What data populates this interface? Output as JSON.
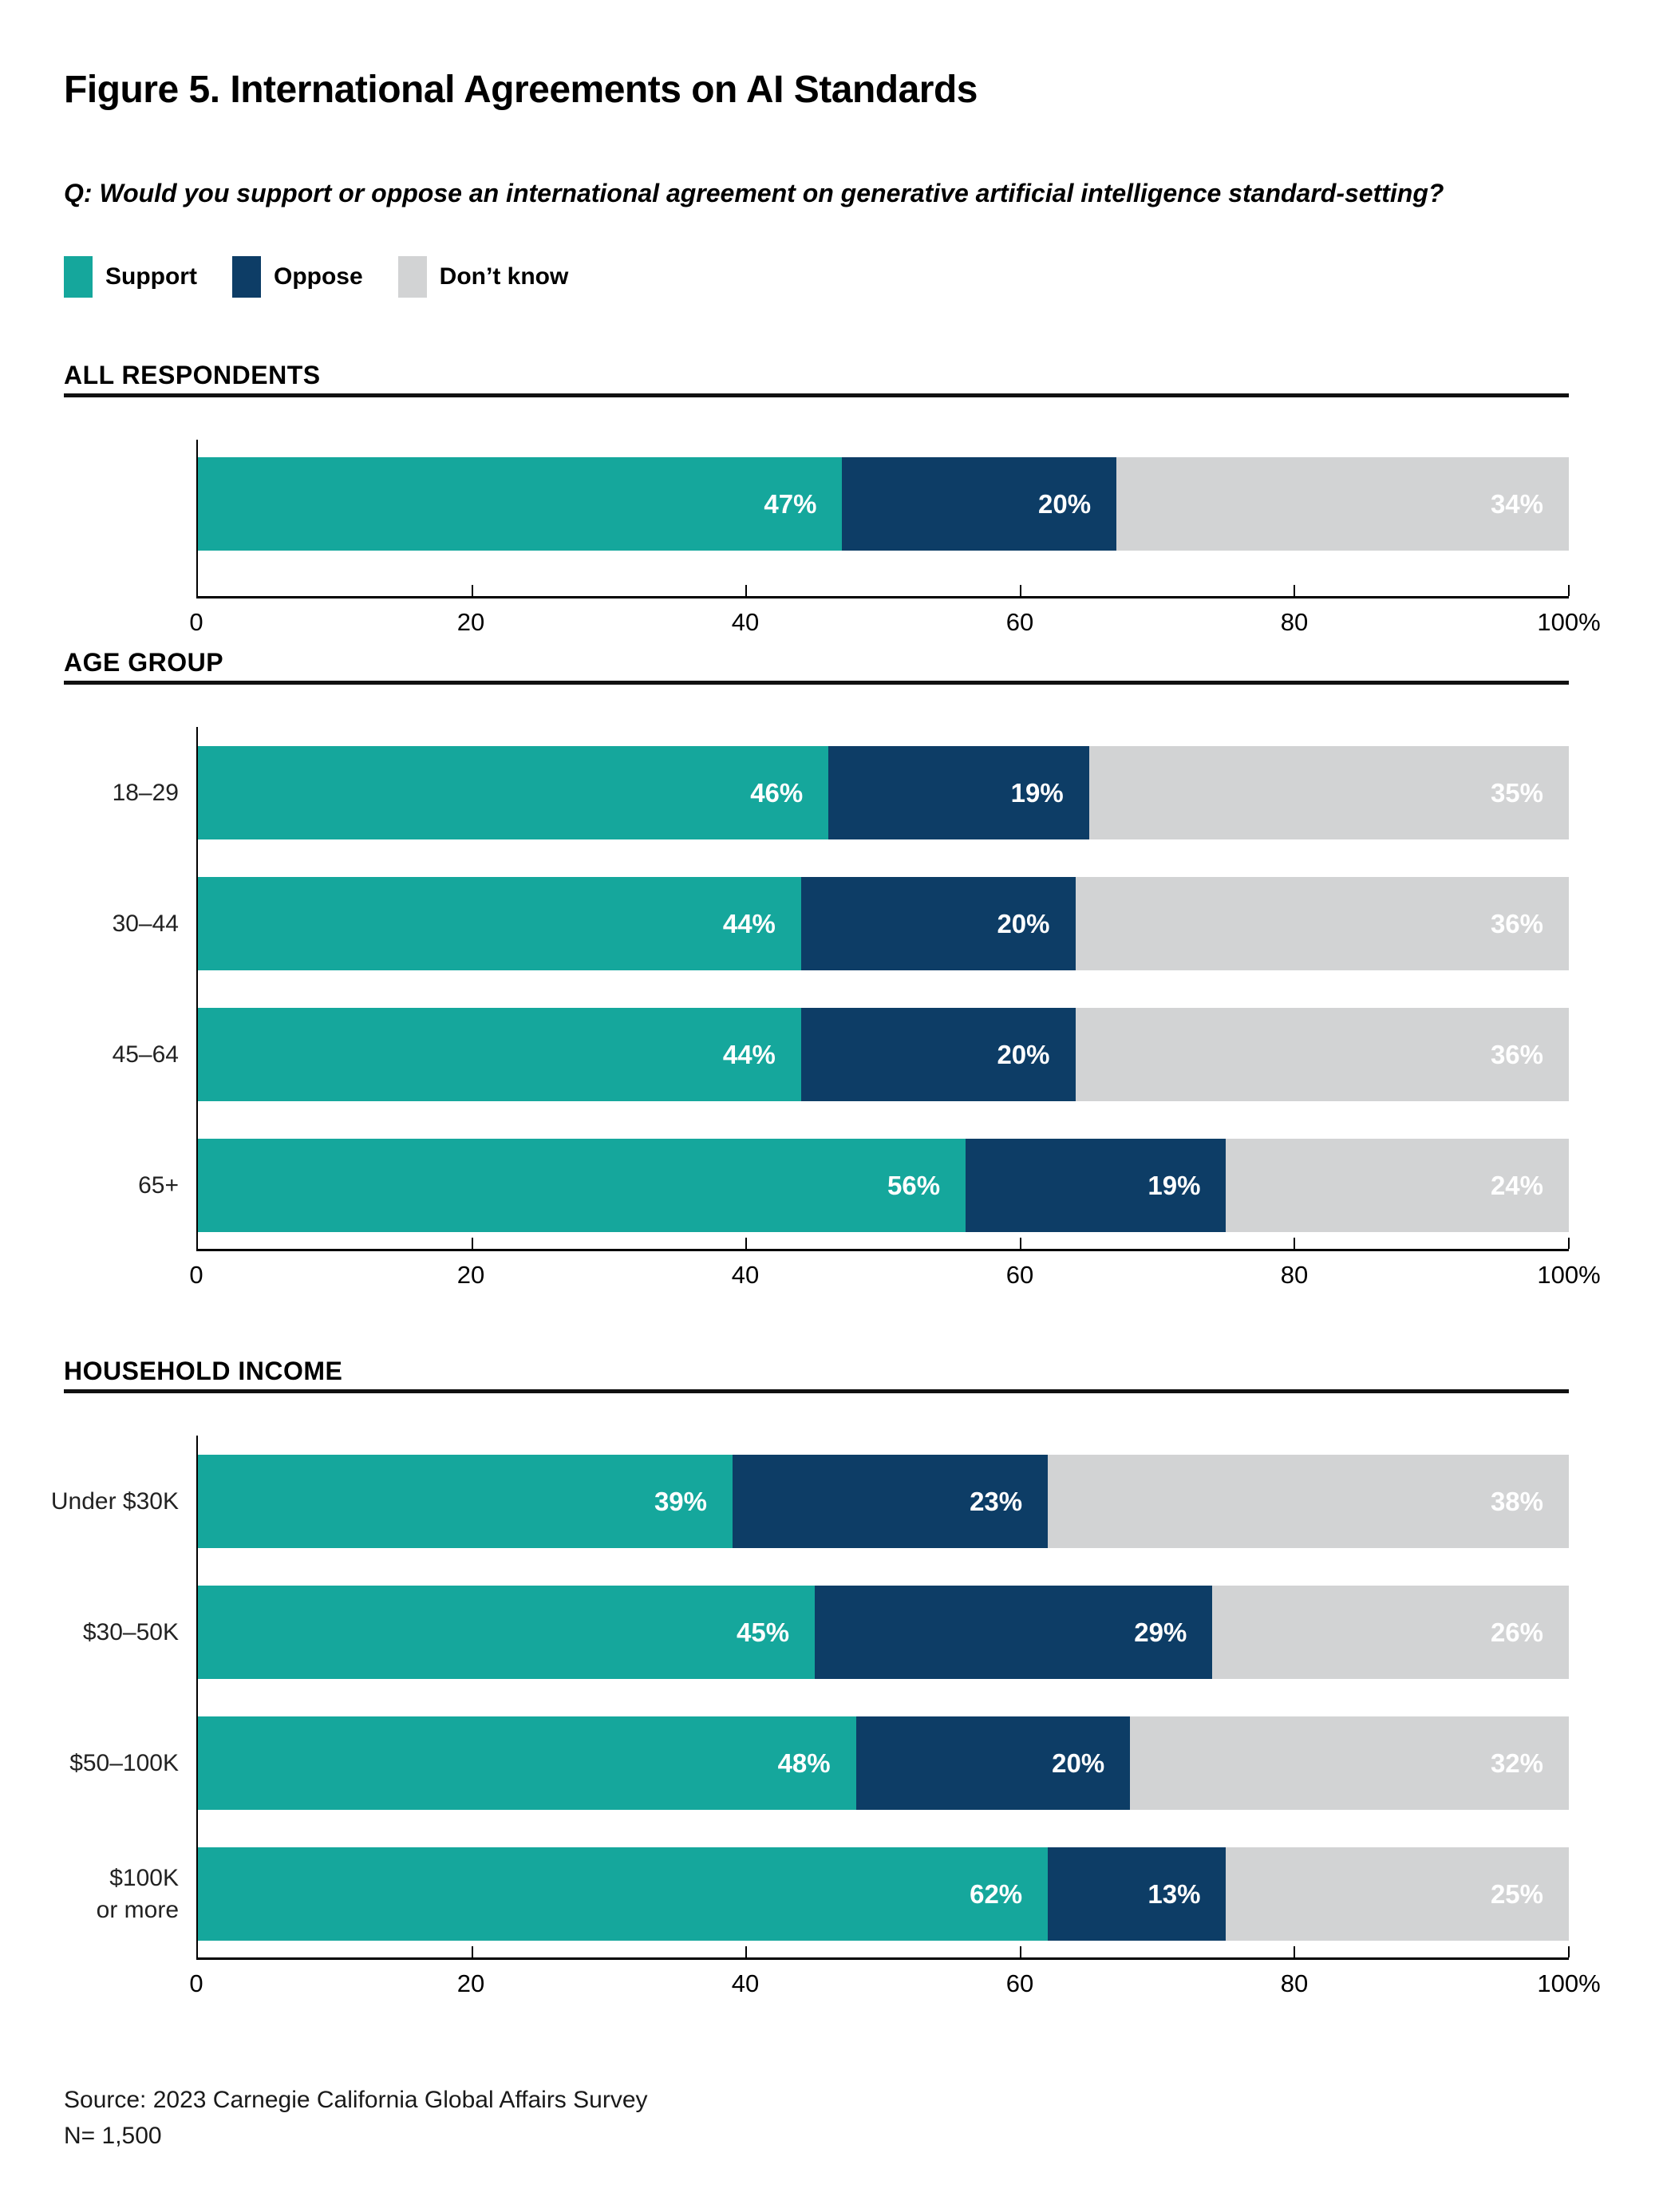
{
  "page": {
    "title": "Figure 5. International Agreements on AI Standards",
    "question": "Q: Would you support or oppose an international agreement on generative artificial intelligence standard-setting?",
    "source": "Source: 2023 Carnegie California Global Affairs Survey",
    "sample_size": "N= 1,500"
  },
  "colors": {
    "support": "#15A79C",
    "oppose": "#0D3D66",
    "dont_know": "#D2D3D4",
    "axis": "#000000",
    "header_rule": "#111111"
  },
  "legend": {
    "items": [
      {
        "label": "Support",
        "color": "#15A79C"
      },
      {
        "label": "Oppose",
        "color": "#0D3D66"
      },
      {
        "label": "Don’t know",
        "color": "#D2D3D4"
      }
    ]
  },
  "axis": {
    "min": 0,
    "max": 100,
    "ticks": [
      "0",
      "20",
      "40",
      "60",
      "80",
      "100%"
    ]
  },
  "chart_data": [
    {
      "type": "bar",
      "orientation": "horizontal",
      "stacked": true,
      "section": "ALL RESPONDENTS",
      "categories": [
        ""
      ],
      "series": [
        {
          "name": "Support",
          "values": [
            47
          ]
        },
        {
          "name": "Oppose",
          "values": [
            20
          ]
        },
        {
          "name": "Don’t know",
          "values": [
            34
          ]
        }
      ],
      "xlim": [
        0,
        100
      ],
      "value_label_format": "percent",
      "legend_position": "top"
    },
    {
      "type": "bar",
      "orientation": "horizontal",
      "stacked": true,
      "section": "AGE GROUP",
      "categories": [
        "18–29",
        "30–44",
        "45–64",
        "65+"
      ],
      "series": [
        {
          "name": "Support",
          "values": [
            46,
            44,
            44,
            56
          ]
        },
        {
          "name": "Oppose",
          "values": [
            19,
            20,
            20,
            19
          ]
        },
        {
          "name": "Don’t know",
          "values": [
            35,
            36,
            36,
            24
          ]
        }
      ],
      "xlim": [
        0,
        100
      ],
      "value_label_format": "percent",
      "legend_position": "top"
    },
    {
      "type": "bar",
      "orientation": "horizontal",
      "stacked": true,
      "section": "HOUSEHOLD INCOME",
      "categories": [
        "Under $30K",
        "$30–50K",
        "$50–100K",
        "$100K\nor more"
      ],
      "series": [
        {
          "name": "Support",
          "values": [
            39,
            45,
            48,
            62
          ]
        },
        {
          "name": "Oppose",
          "values": [
            23,
            29,
            20,
            13
          ]
        },
        {
          "name": "Don’t know",
          "values": [
            38,
            26,
            32,
            25
          ]
        }
      ],
      "xlim": [
        0,
        100
      ],
      "value_label_format": "percent",
      "legend_position": "top"
    }
  ]
}
